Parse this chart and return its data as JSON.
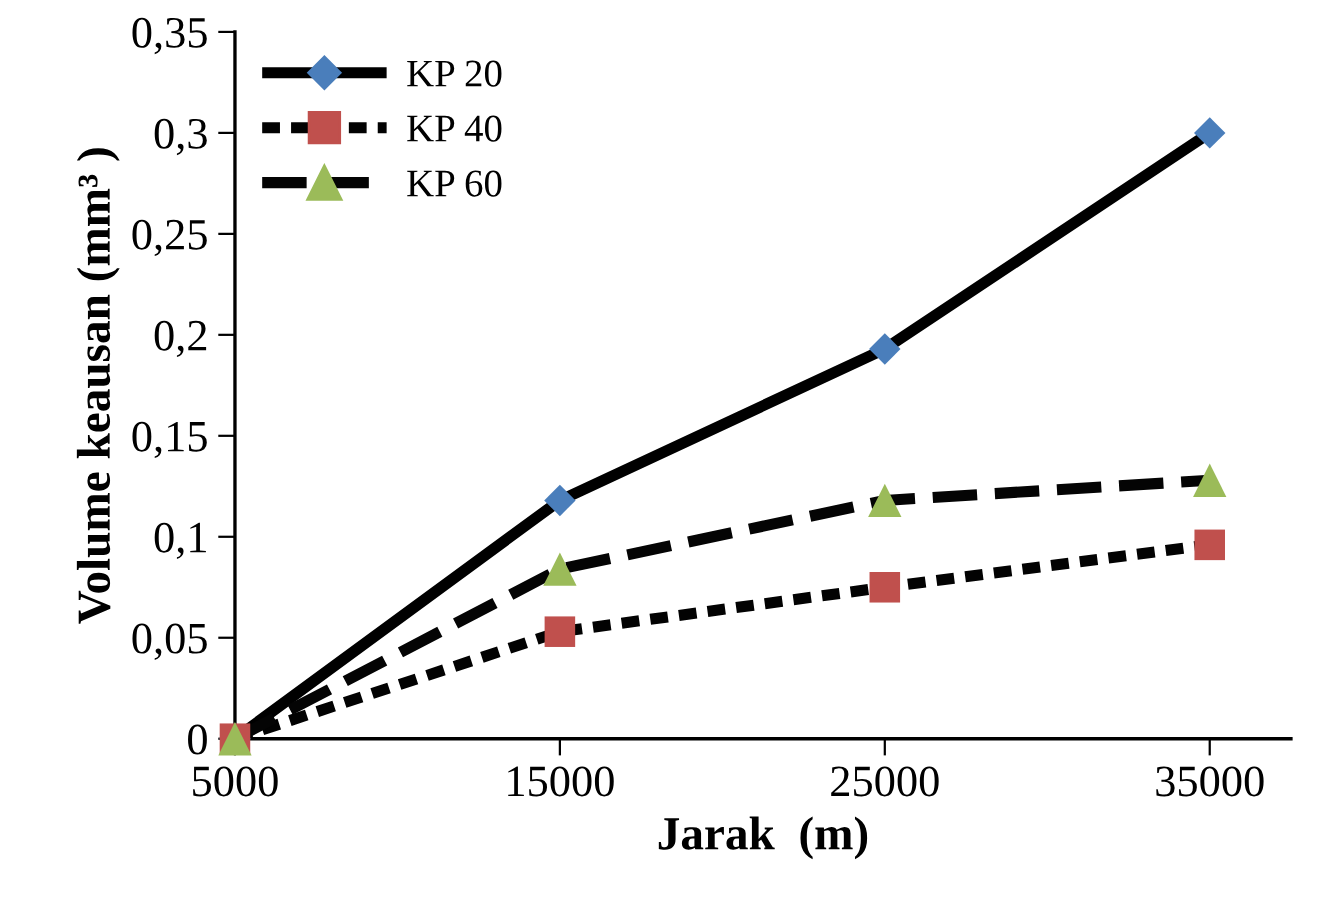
{
  "chart_data": {
    "type": "line",
    "xlabel": "Jarak  (m)",
    "ylabel": "Volume keausan (mm³ )",
    "categories": [
      "5000",
      "15000",
      "25000",
      "35000"
    ],
    "series": [
      {
        "name": "KP 20",
        "color": "#000000",
        "colors": [
          "#4a7ebb",
          "#4a7ebb",
          "#4a7ebb",
          "#4a7ebb"
        ],
        "marker": "diamond",
        "line_style": "solid",
        "values": [
          0,
          0.118,
          0.193,
          0.3
        ]
      },
      {
        "name": "KP 40",
        "color": "#020202",
        "colors": [
          "#c0504d",
          "#c0504d",
          "#c0504d",
          "#c0504d"
        ],
        "marker": "square",
        "line_style": "dotted",
        "values": [
          0,
          0.053,
          0.075,
          0.096
        ]
      },
      {
        "name": "KP 60",
        "color": "#040404",
        "colors": [
          "#9bbb59",
          "#9bbb59",
          "#9bbb59",
          "#9bbb59"
        ],
        "marker": "triangle",
        "line_style": "dashed",
        "values": [
          0,
          0.084,
          0.118,
          0.128
        ]
      }
    ],
    "ylim": [
      0,
      0.35
    ],
    "yticks": [
      {
        "value": 0,
        "label": "0"
      },
      {
        "value": 0.05,
        "label": "0,05"
      },
      {
        "value": 0.1,
        "label": "0,1"
      },
      {
        "value": 0.15,
        "label": "0,15"
      },
      {
        "value": 0.2,
        "label": "0,2"
      },
      {
        "value": 0.25,
        "label": "0,25"
      },
      {
        "value": 0.3,
        "label": "0,3"
      },
      {
        "value": 0.35,
        "label": "0,35"
      }
    ],
    "grid": false,
    "legend": "top left"
  }
}
